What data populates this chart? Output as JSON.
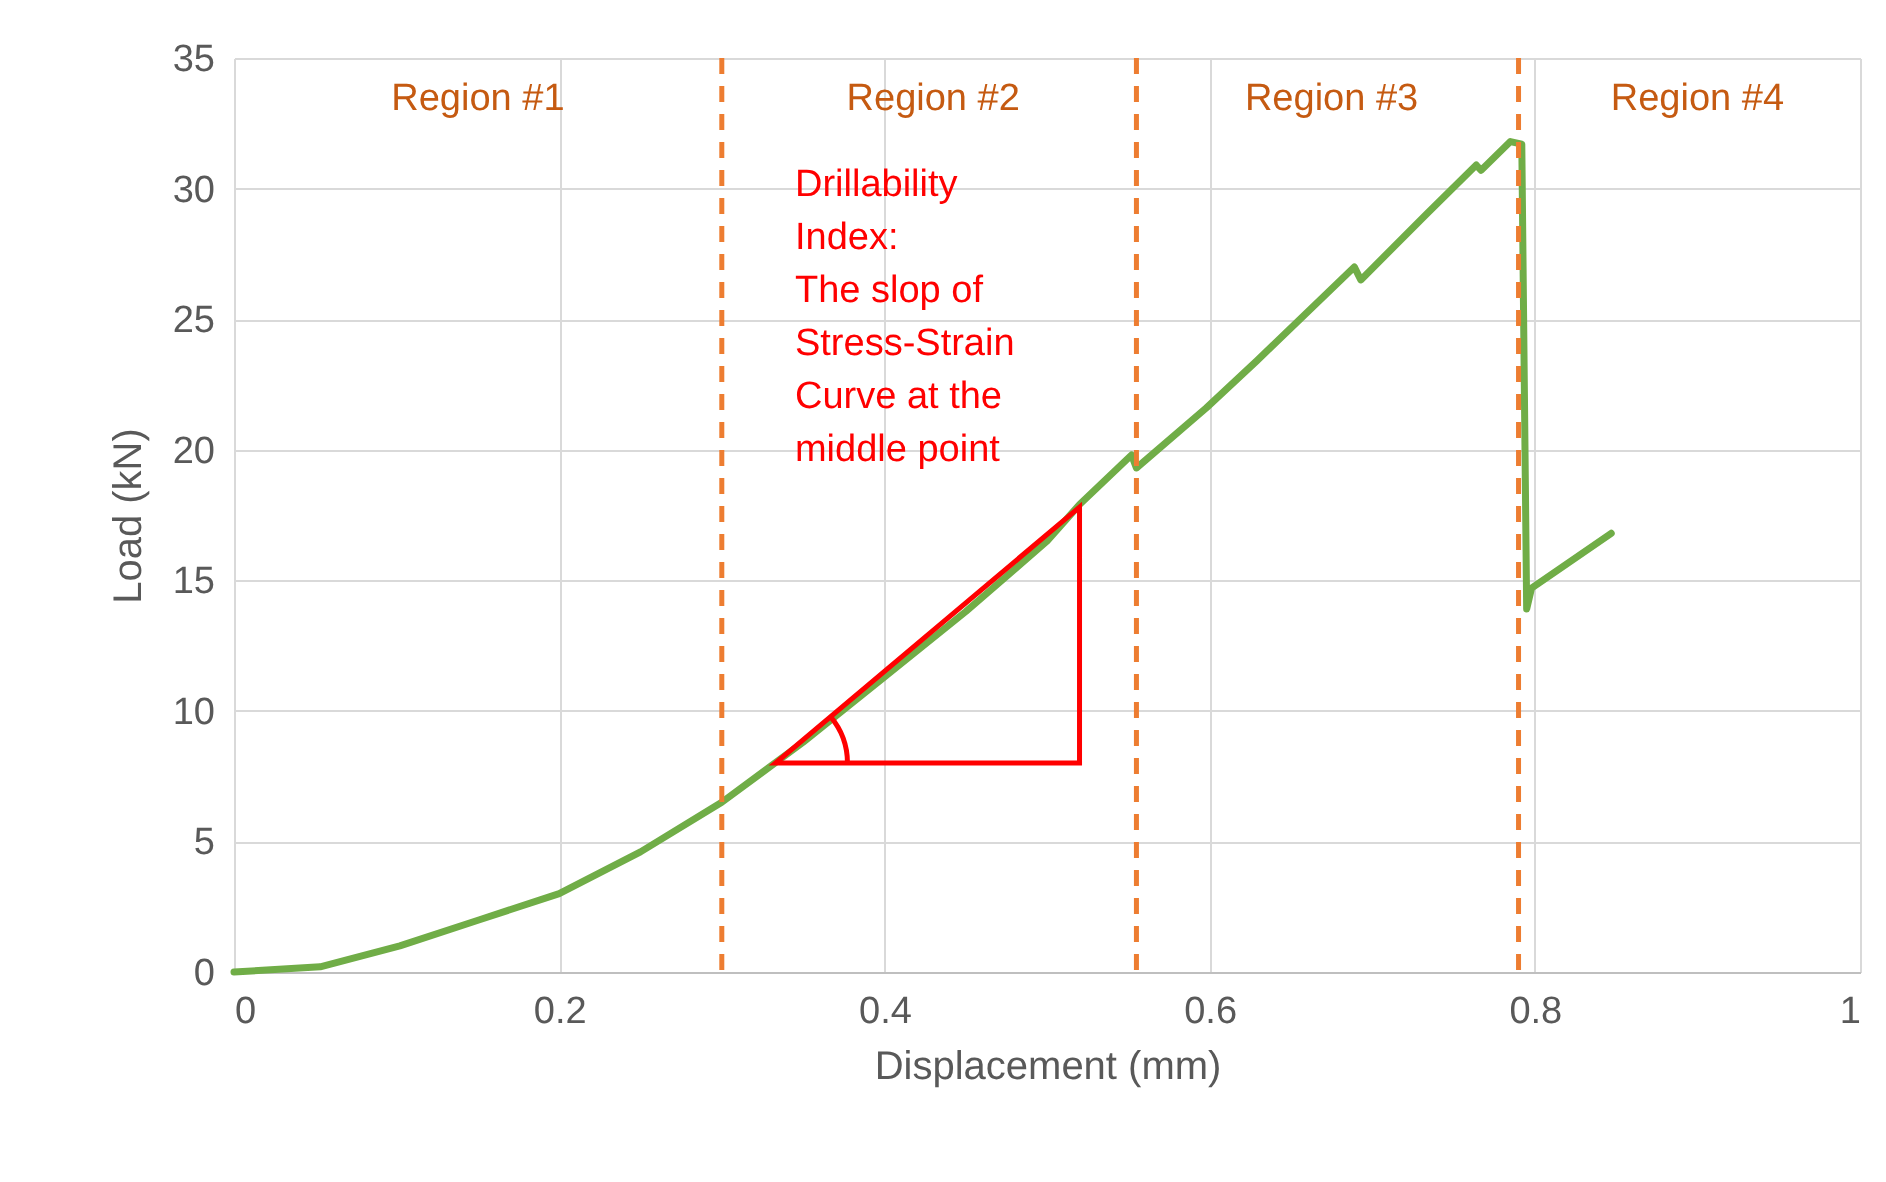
{
  "chart_data": {
    "type": "line",
    "xlabel": "Displacement (mm)",
    "ylabel": "Load (kN)",
    "x": [
      0,
      0.053,
      0.102,
      0.151,
      0.2,
      0.25,
      0.3,
      0.35,
      0.4,
      0.45,
      0.5,
      0.52,
      0.552,
      0.555,
      0.598,
      0.629,
      0.689,
      0.693,
      0.733,
      0.764,
      0.767,
      0.785,
      0.792,
      0.795,
      0.798,
      0.847
    ],
    "series": [
      {
        "color": "#70ad47",
        "values": [
          0,
          0.2,
          1.0,
          2.0,
          3.0,
          4.6,
          6.5,
          8.8,
          11.3,
          13.8,
          16.5,
          17.9,
          19.8,
          19.3,
          21.6,
          23.4,
          27.0,
          26.5,
          29.0,
          30.9,
          30.7,
          31.8,
          31.7,
          13.9,
          14.7,
          16.8
        ]
      }
    ],
    "xlim": [
      0,
      1
    ],
    "xticks": [
      0,
      0.2,
      0.4,
      0.6,
      0.8,
      1
    ],
    "ylim": [
      0,
      35
    ],
    "yticks": [
      0,
      5,
      10,
      15,
      20,
      25,
      30,
      35
    ],
    "grid": true,
    "marker": "none",
    "line_style": "solid",
    "ref_lines": [
      {
        "axis": "x",
        "value": 0.3,
        "color": "#ed7d31",
        "line_style": "dashed"
      },
      {
        "axis": "x",
        "value": 0.555,
        "color": "#ed7d31",
        "line_style": "dashed"
      },
      {
        "axis": "x",
        "value": 0.79,
        "color": "#ed7d31",
        "line_style": "dashed"
      }
    ],
    "annotations": [
      "Region #1",
      "Region #2",
      "Region #3",
      "Region #4",
      "Drillability\nIndex:\nThe slop of\nStress-Strain\nCurve at the\nmiddle point"
    ]
  }
}
